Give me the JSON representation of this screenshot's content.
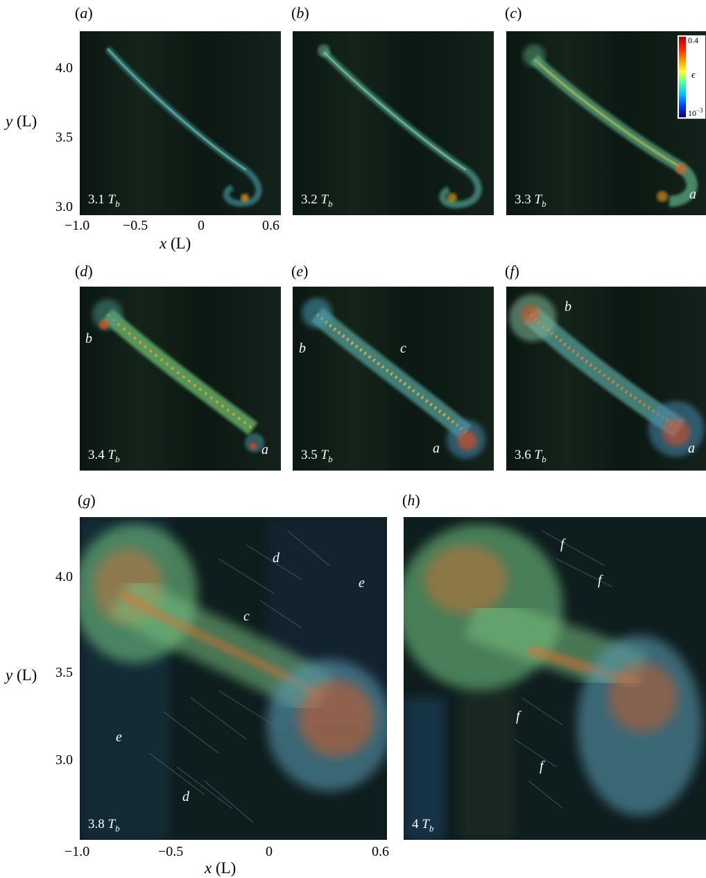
{
  "panels": [
    {
      "id": "a",
      "label": "a",
      "time": "3.1",
      "unit": "T",
      "sub": "b",
      "marks": []
    },
    {
      "id": "b",
      "label": "b",
      "time": "3.2",
      "unit": "T",
      "sub": "b",
      "marks": []
    },
    {
      "id": "c",
      "label": "c",
      "time": "3.3",
      "unit": "T",
      "sub": "b",
      "marks": [
        "a"
      ]
    },
    {
      "id": "d",
      "label": "d",
      "time": "3.4",
      "unit": "T",
      "sub": "b",
      "marks": [
        "b",
        "a"
      ]
    },
    {
      "id": "e",
      "label": "e",
      "time": "3.5",
      "unit": "T",
      "sub": "b",
      "marks": [
        "b",
        "c",
        "a"
      ]
    },
    {
      "id": "f",
      "label": "f",
      "time": "3.6",
      "unit": "T",
      "sub": "b",
      "marks": [
        "b",
        "a"
      ]
    },
    {
      "id": "g",
      "label": "g",
      "time": "3.8",
      "unit": "T",
      "sub": "b",
      "marks": [
        "d",
        "e",
        "c",
        "e",
        "d"
      ]
    },
    {
      "id": "h",
      "label": "h",
      "time": "4",
      "unit": "T",
      "sub": "b",
      "marks": [
        "f",
        "f",
        "f",
        "f"
      ]
    }
  ],
  "axes": {
    "x_label": "x",
    "x_unit": "(L)",
    "y_label": "y",
    "y_unit": "(L)",
    "x_ticks": [
      "−1.0",
      "−0.5",
      "0",
      "0.6"
    ],
    "y_ticks_top": [
      "4.0",
      "3.5",
      "3.0"
    ],
    "y_ticks_bottom": [
      "4.0",
      "3.5",
      "3.0"
    ]
  },
  "colorbar": {
    "max": "0.4",
    "symbol": "ϵ",
    "min": "10",
    "min_exp": "−3"
  },
  "colors": {
    "low": "#00008a",
    "mid": "#50ffa0",
    "high": "#b00000",
    "background": "#0c1a14"
  }
}
